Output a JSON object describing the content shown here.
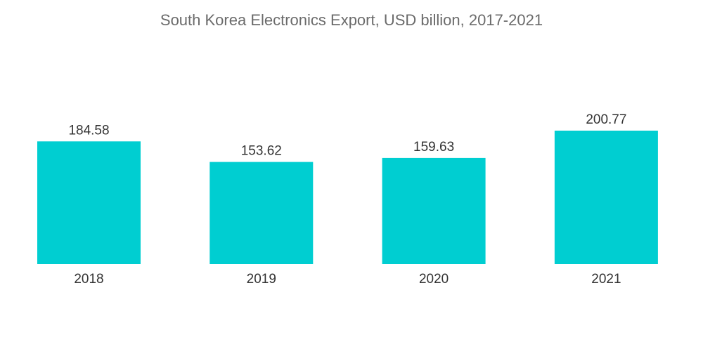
{
  "chart_data": {
    "type": "bar",
    "title": "South Korea Electronics Export, USD billion, 2017-2021",
    "xlabel": "",
    "ylabel": "",
    "categories": [
      "2018",
      "2019",
      "2020",
      "2021"
    ],
    "values": [
      184.58,
      153.62,
      159.63,
      200.77
    ],
    "value_labels": [
      "184.58",
      "153.62",
      "159.63",
      "200.77"
    ],
    "ylim": [
      0,
      200.77
    ],
    "grid": false,
    "legend": "none",
    "bar_color": "#00CED1"
  }
}
